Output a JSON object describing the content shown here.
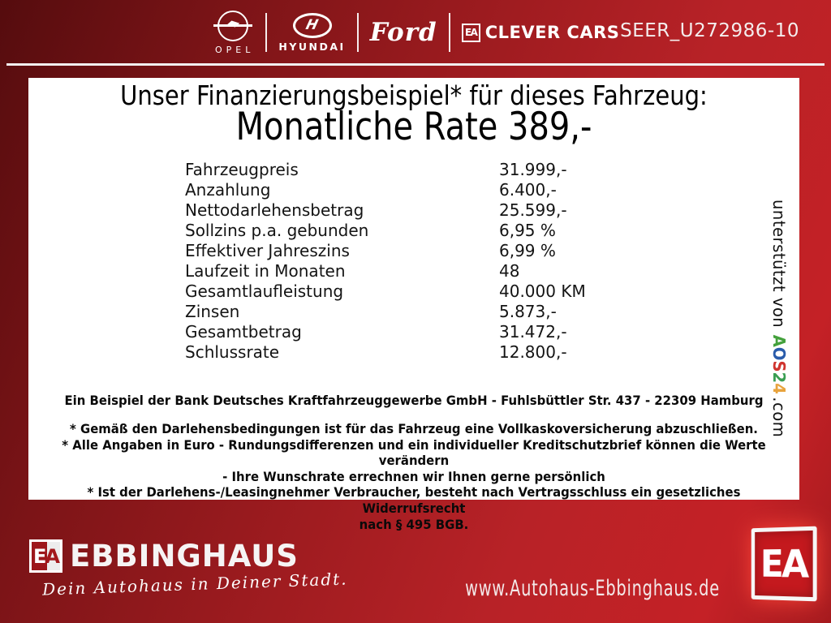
{
  "header": {
    "brands": [
      {
        "label": "OPEL"
      },
      {
        "label": "HYUNDAI"
      },
      {
        "label": "Ford"
      }
    ],
    "clever_cars": {
      "ea": "EA",
      "label": "CLEVER CARS"
    },
    "vehicle_id": "SEER_U272986-10"
  },
  "finance": {
    "intro": "Unser Finanzierungsbeispiel* für dieses Fahrzeug:",
    "rate_headline": "Monatliche Rate 389,-",
    "rows": [
      {
        "label": "Fahrzeugpreis",
        "value": "31.999,-"
      },
      {
        "label": "Anzahlung",
        "value": "6.400,-"
      },
      {
        "label": "Nettodarlehensbetrag",
        "value": "25.599,-"
      },
      {
        "label": "Sollzins p.a. gebunden",
        "value": "6,95 %"
      },
      {
        "label": "Effektiver Jahreszins",
        "value": "6,99 %"
      },
      {
        "label": "Laufzeit in Monaten",
        "value": "48"
      },
      {
        "label": "Gesamtlaufleistung",
        "value": "40.000 KM"
      },
      {
        "label": "Zinsen",
        "value": "5.873,-"
      },
      {
        "label": "Gesamtbetrag",
        "value": "31.472,-"
      },
      {
        "label": "Schlussrate",
        "value": "12.800,-"
      }
    ],
    "bank_line": "Ein Beispiel der Bank Deutsches Kraftfahrzeuggewerbe GmbH - Fuhlsbüttler Str. 437 - 22309 Hamburg",
    "footnote_lines": [
      "* Gemäß den Darlehensbedingungen ist für das Fahrzeug eine Vollkaskoversicherung abzuschließen.",
      "* Alle Angaben in Euro - Rundungsdifferenzen und ein individueller Kreditschutzbrief können die Werte verändern",
      "- Ihre Wunschrate errechnen wir Ihnen gerne persönlich",
      "* Ist der Darlehens-/Leasingnehmer Verbraucher, besteht nach Vertragsschluss ein gesetzliches Widerrufsrecht",
      "nach § 495 BGB."
    ]
  },
  "support": {
    "prefix": "unterstützt von",
    "letters": [
      {
        "char": "A",
        "color": "#44a13c"
      },
      {
        "char": "O",
        "color": "#2a5cab"
      },
      {
        "char": "S",
        "color": "#d0342e"
      },
      {
        "char": "2",
        "color": "#3a9e52"
      },
      {
        "char": "4",
        "color": "#e8a33d"
      }
    ],
    "suffix": ".com"
  },
  "footer": {
    "ea_small_e": "E",
    "ea_small_a": "A",
    "dealer_name": "EBBINGHAUS",
    "tagline": "Dein Autohaus in Deiner Stadt.",
    "website": "www.Autohaus-Ebbinghaus.de",
    "ea_big": "EA"
  },
  "colors": {
    "background_red": "#b82227",
    "bright_red": "#c4191e",
    "footer_dark": "#150303"
  }
}
